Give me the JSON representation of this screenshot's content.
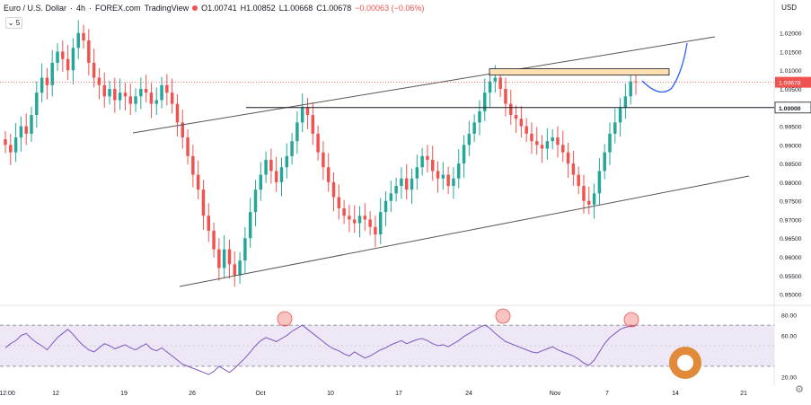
{
  "header": {
    "symbol": "Euro / U.S. Dollar",
    "interval": "4h",
    "source": "FOREX.com",
    "platform": "TradingView",
    "open": "O1.00741",
    "high": "H1.00852",
    "low": "L1.00668",
    "close": "C1.00678",
    "change": "−0.00063 (−0.06%)",
    "timeframe_box": "5"
  },
  "currency": "USD",
  "colors": {
    "up": "#26a69a",
    "down": "#ef5350",
    "rsi": "#7e57c2",
    "rsi_band": "#ede7f6",
    "zone": "#ffe0b2",
    "arrow": "#2962ff"
  },
  "chart_data": {
    "type": "candlestick",
    "price_axis": {
      "ticks": [
        "1.02000",
        "1.01500",
        "1.01000",
        "1.00500",
        "1.00000",
        "0.99500",
        "0.99000",
        "0.98500",
        "0.98000",
        "0.97500",
        "0.97000",
        "0.96500",
        "0.96000",
        "0.95500",
        "0.95000"
      ],
      "range": [
        0.947,
        1.0245
      ],
      "current_price_label": "1.00678",
      "current_price": 1.00678,
      "marked_level_label": "1.00000",
      "marked_level": 1.0
    },
    "time_axis": [
      "12:00",
      "12",
      "19",
      "26",
      "Oct",
      "10",
      "17",
      "24",
      "Nov",
      "7",
      "14",
      "21"
    ],
    "closes": [
      0.99,
      0.988,
      0.992,
      0.995,
      0.993,
      0.998,
      1.004,
      1.008,
      1.006,
      1.012,
      1.015,
      1.013,
      1.01,
      1.016,
      1.02,
      1.018,
      1.012,
      1.008,
      1.006,
      1.003,
      1.005,
      1.002,
      1.004,
      1.003,
      1.001,
      1.003,
      1.005,
      1.004,
      1.001,
      1.002,
      1.006,
      1.004,
      1.001,
      0.996,
      0.992,
      0.987,
      0.982,
      0.978,
      0.971,
      0.967,
      0.962,
      0.957,
      0.962,
      0.958,
      0.955,
      0.959,
      0.965,
      0.972,
      0.978,
      0.982,
      0.986,
      0.983,
      0.98,
      0.984,
      0.987,
      0.991,
      0.996,
      1.0,
      0.998,
      0.993,
      0.988,
      0.984,
      0.98,
      0.976,
      0.973,
      0.971,
      0.97,
      0.969,
      0.971,
      0.97,
      0.968,
      0.966,
      0.972,
      0.975,
      0.977,
      0.979,
      0.981,
      0.978,
      0.981,
      0.984,
      0.987,
      0.986,
      0.983,
      0.981,
      0.982,
      0.979,
      0.981,
      0.985,
      0.99,
      0.993,
      0.996,
      0.999,
      1.004,
      1.007,
      1.008,
      1.005,
      1.001,
      0.998,
      0.997,
      0.995,
      0.993,
      0.991,
      0.99,
      0.989,
      0.991,
      0.992,
      0.99,
      0.988,
      0.985,
      0.982,
      0.979,
      0.975,
      0.974,
      0.977,
      0.983,
      0.988,
      0.993,
      0.996,
      1.0,
      1.003,
      1.007,
      1.0068
    ],
    "levels": [
      {
        "label": "1.00000",
        "value": 1.0
      }
    ],
    "rsi": {
      "axis_ticks": [
        "80.00",
        "60.00",
        "20.00"
      ],
      "upper_band": 70,
      "lower_band": 30,
      "values": [
        48,
        52,
        55,
        60,
        62,
        57,
        53,
        50,
        46,
        52,
        58,
        62,
        66,
        61,
        55,
        50,
        46,
        44,
        48,
        52,
        50,
        47,
        49,
        51,
        48,
        46,
        49,
        52,
        47,
        45,
        48,
        44,
        40,
        36,
        32,
        30,
        28,
        26,
        24,
        22,
        25,
        30,
        27,
        24,
        28,
        33,
        38,
        44,
        50,
        55,
        58,
        56,
        54,
        57,
        60,
        64,
        67,
        70,
        66,
        62,
        58,
        54,
        50,
        47,
        45,
        42,
        40,
        44,
        41,
        38,
        40,
        43,
        46,
        48,
        51,
        53,
        55,
        52,
        54,
        56,
        57,
        55,
        52,
        50,
        51,
        49,
        52,
        55,
        59,
        62,
        65,
        68,
        70,
        67,
        62,
        58,
        54,
        52,
        50,
        48,
        46,
        44,
        43,
        45,
        47,
        49,
        46,
        44,
        42,
        40,
        37,
        33,
        31,
        36,
        44,
        52,
        58,
        62,
        66,
        68,
        69,
        70
      ]
    },
    "annotations": {
      "rsi_circles": 3,
      "resistance_zone": [
        1.0087,
        1.0104
      ]
    }
  }
}
